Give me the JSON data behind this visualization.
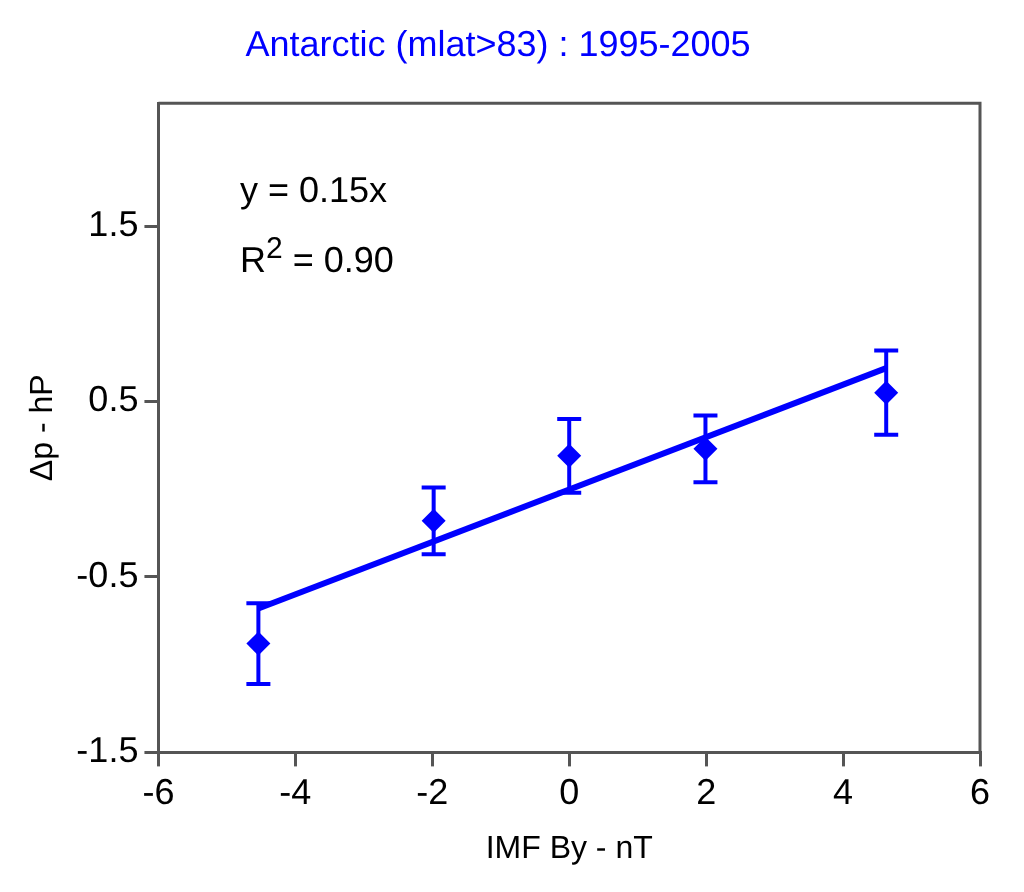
{
  "chart_data": {
    "type": "scatter",
    "title": "Antarctic (mlat>83) : 1995-2005",
    "xlabel": "IMF By - nT",
    "ylabel": "Δp - hP",
    "x": [
      -4.54,
      -1.98,
      0,
      1.99,
      4.63
    ],
    "series": [
      {
        "color": "#0000ff",
        "marker": "diamond",
        "values": [
          -0.88,
          -0.18,
          0.19,
          0.23,
          0.55
        ],
        "errors": [
          0.23,
          0.19,
          0.21,
          0.19,
          0.24
        ]
      },
      {
        "type": "line",
        "color": "#0000ff",
        "marker": "none",
        "x": [
          -4.54,
          4.63
        ],
        "values": [
          -0.68,
          0.69
        ]
      }
    ],
    "xlim": [
      -6,
      6
    ],
    "xticks": [
      -6,
      -4,
      -2,
      0,
      2,
      4,
      6
    ],
    "ylim": [
      -1.5,
      2.2
    ],
    "yticks": [
      1.5,
      0.5,
      -0.5,
      -1.5
    ],
    "annotations": [
      "y = 0.15x",
      "R$^{2}$ = 0.90"
    ],
    "grid": false,
    "legend": false
  }
}
